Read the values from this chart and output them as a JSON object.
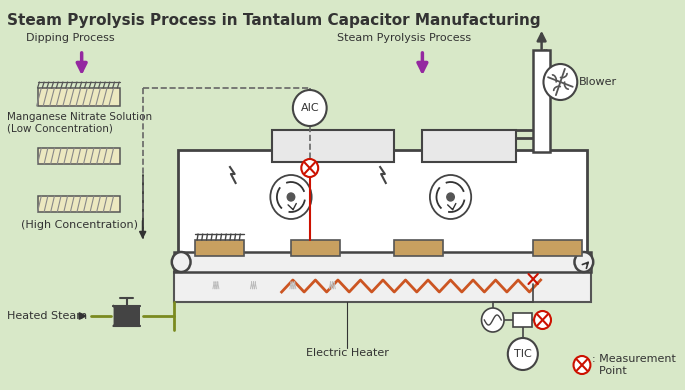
{
  "title": "Steam Pyrolysis Process in Tantalum Capacitor Manufacturing",
  "bg": "#d8e8c8",
  "dark": "#333333",
  "purple": "#9428a0",
  "red": "#cc1100",
  "green_olive": "#7a8a20",
  "tan": "#c8a060",
  "orange": "#cc5522",
  "gray_light": "#f0f0f0",
  "gray_med": "#dddddd",
  "dashed": "#666666",
  "labels": {
    "title": "Steam Pyrolysis Process in Tantalum Capacitor Manufacturing",
    "dipping": "Dipping Process",
    "steam_pyrolysis": "Steam Pyrolysis Process",
    "blower": "Blower",
    "mn_sol": "Manganese Nitrate Solution\n(Low Concentration)",
    "high_conc": "(High Concentration)",
    "heated_steam": "Heated Steam",
    "elec_heater": "Electric Heater",
    "aic": "AIC",
    "tic": "TIC",
    "meas_label": ": Measurement\n  Point"
  }
}
